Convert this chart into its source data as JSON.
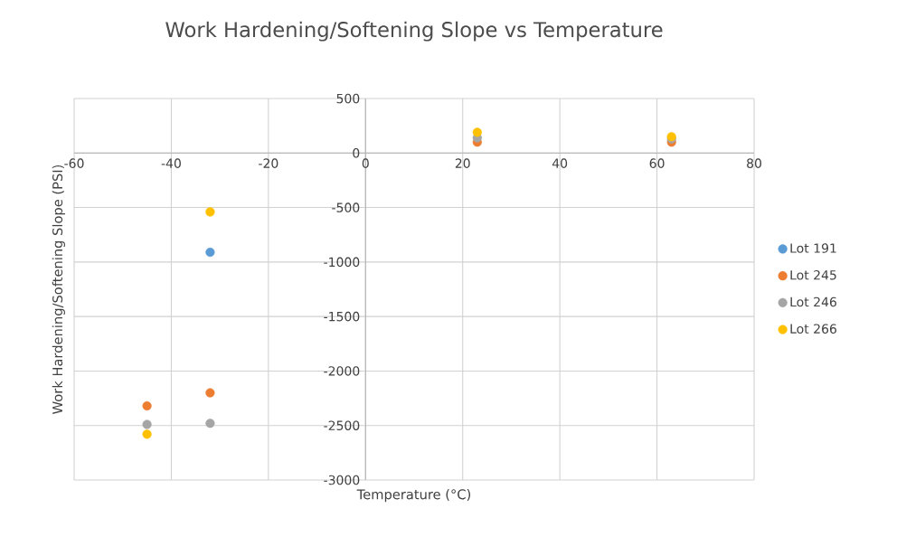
{
  "chart_data": {
    "type": "scatter",
    "title": "Work Hardening/Softening Slope vs Temperature",
    "xlabel": "Temperature (°C)",
    "ylabel": "Work Hardening/Softening Slope (PSI)",
    "x": [
      -45,
      -32,
      23,
      63
    ],
    "series": [
      {
        "name": "Lot 191",
        "color": "#5b9bd5",
        "values": [
          null,
          -910,
          null,
          null
        ]
      },
      {
        "name": "Lot 245",
        "color": "#ed7d31",
        "values": [
          -2320,
          -2200,
          100,
          100
        ]
      },
      {
        "name": "Lot 246",
        "color": "#a5a5a5",
        "values": [
          -2490,
          -2480,
          140,
          130
        ]
      },
      {
        "name": "Lot 266",
        "color": "#ffc000",
        "values": [
          -2580,
          -540,
          190,
          150
        ]
      }
    ],
    "xlim": [
      -60,
      80
    ],
    "ylim": [
      -3000,
      500
    ],
    "xticks": [
      -60,
      -40,
      -20,
      0,
      20,
      40,
      60,
      80
    ],
    "yticks": [
      -3000,
      -2500,
      -2000,
      -1500,
      -1000,
      -500,
      0,
      500
    ],
    "grid": true,
    "legend": "right",
    "marker": "circle"
  }
}
